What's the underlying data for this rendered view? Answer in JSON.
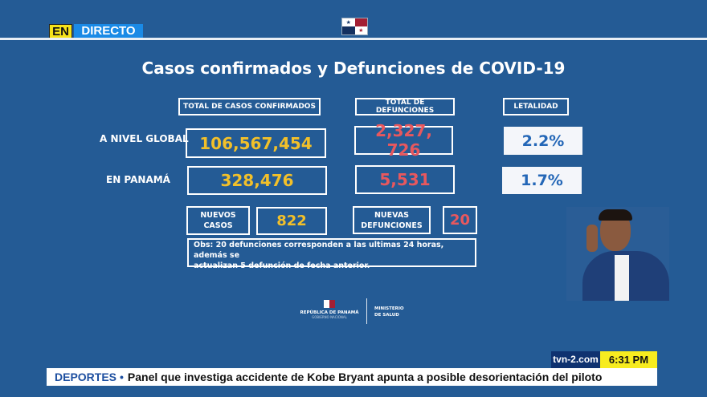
{
  "live_badge": {
    "en": "EN",
    "directo": "DIRECTO"
  },
  "title": "Casos confirmados y Defunciones de COVID-19",
  "headers": {
    "cases": "TOTAL DE CASOS CONFIRMADOS",
    "deaths": "TOTAL DE DEFUNCIONES",
    "lethality": "LETALIDAD"
  },
  "rows": [
    {
      "label": "A NIVEL GLOBAL",
      "cases": "106,567,454",
      "deaths": "2,327, 726",
      "lethality": "2.2%"
    },
    {
      "label": "EN PANAMÁ",
      "cases": "328,476",
      "deaths": "5,531",
      "lethality": "1.7%"
    }
  ],
  "new": {
    "cases_label_1": "NUEVOS",
    "cases_label_2": "CASOS",
    "cases": "822",
    "deaths_label_1": "NUEVAS",
    "deaths_label_2": "DEFUNCIONES",
    "deaths": "20"
  },
  "obs": {
    "line1": "Obs: 20 defunciones corresponden a las ultimas 24 horas, además se",
    "line2": "actualizan  5 defunción de fecha anterior."
  },
  "logo": {
    "republica": "REPÚBLICA DE PANAMÁ",
    "gobierno": "GOBIERNO NACIONAL",
    "ministerio_1": "MINISTERIO",
    "ministerio_2": "DE SALUD"
  },
  "footer": {
    "site": "tvn-2.com",
    "time": "6:31 PM",
    "ticker_category": "DEPORTES",
    "ticker_text": "Panel que investiga accidente de Kobe Bryant apunta a posible desorientación del piloto"
  },
  "colors": {
    "background": "#245b95",
    "cases": "#f2c02a",
    "deaths": "#e8585e",
    "lethality": "#2467b7",
    "live_yellow": "#f5e21a",
    "live_blue": "#1a8ae6"
  }
}
